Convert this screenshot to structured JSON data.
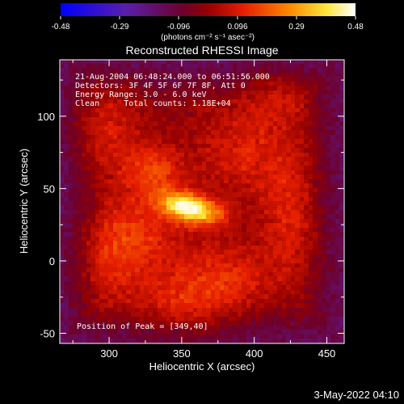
{
  "chart_data": {
    "type": "heatmap",
    "title": "Reconstructed RHESSI Image",
    "xlabel": "Heliocentric X (arcsec)",
    "ylabel": "Heliocentric Y (arcsec)",
    "xlim": [
      266,
      462
    ],
    "ylim": [
      -57,
      139
    ],
    "x_ticks": [
      300,
      350,
      400,
      450
    ],
    "y_ticks": [
      -50,
      0,
      50,
      100
    ],
    "colorbar": {
      "min": -0.48,
      "max": 0.48,
      "tick_labels": [
        "-0.48",
        "-0.29",
        "-0.096",
        "0.096",
        "0.29",
        "0.48"
      ],
      "unit_label": "(photons cm⁻² s⁻¹ asec⁻²)"
    },
    "annotations": [
      "21-Aug-2004 06:48:24.000 to 06:51:56.000",
      "Detectors: 3F 4F 5F 6F 7F 8F, Att 0",
      "Energy Range: 3.0 - 6.0 keV",
      "Clean     Total counts: 1.18E+04"
    ],
    "peak_label": "Position of Peak = [349,40]",
    "peak": {
      "x": 349,
      "y": 40,
      "value": 0.48
    },
    "sources": [
      {
        "x": 356,
        "y": 36,
        "peak": 0.48,
        "sx": 15,
        "sy": 7,
        "angle_deg": -15
      },
      {
        "x": 330,
        "y": 62,
        "peak": 0.18,
        "sx": 14,
        "sy": 12,
        "angle_deg": 0
      },
      {
        "x": 318,
        "y": 18,
        "peak": 0.16,
        "sx": 22,
        "sy": 20,
        "angle_deg": 0
      },
      {
        "x": 378,
        "y": -12,
        "peak": 0.15,
        "sx": 26,
        "sy": 18,
        "angle_deg": 0
      },
      {
        "x": 395,
        "y": 75,
        "peak": 0.13,
        "sx": 26,
        "sy": 24,
        "angle_deg": 0
      },
      {
        "x": 298,
        "y": 90,
        "peak": 0.12,
        "sx": 18,
        "sy": 22,
        "angle_deg": 0
      },
      {
        "x": 425,
        "y": 28,
        "peak": 0.12,
        "sx": 14,
        "sy": 28,
        "angle_deg": 0
      },
      {
        "x": 348,
        "y": -35,
        "peak": 0.11,
        "sx": 22,
        "sy": 16,
        "angle_deg": 0
      },
      {
        "x": 418,
        "y": 115,
        "peak": 0.09,
        "sx": 16,
        "sy": 14,
        "angle_deg": 0
      },
      {
        "x": 300,
        "y": -10,
        "peak": 0.09,
        "sx": 16,
        "sy": 22,
        "angle_deg": 0
      }
    ],
    "background_level": -0.03
  },
  "footer_date": "3-May-2022 04:10"
}
